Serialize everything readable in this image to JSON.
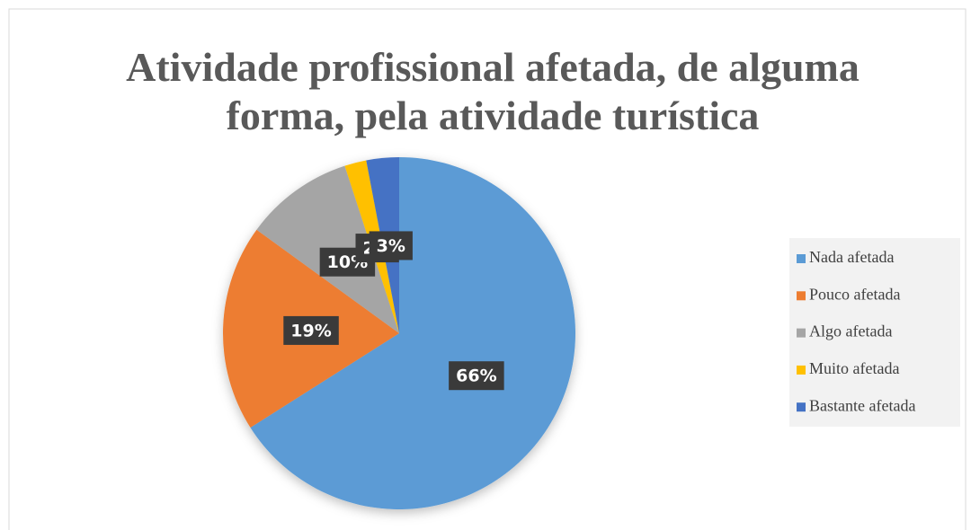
{
  "chart_data": {
    "type": "pie",
    "title": [
      "Atividade profissional afetada, de alguma",
      "forma, pela atividade turística"
    ],
    "categories": [
      "Nada afetada",
      "Pouco afetada",
      "Algo afetada",
      "Muito afetada",
      "Bastante afetada"
    ],
    "values": [
      66,
      19,
      10,
      2,
      3
    ],
    "value_labels": [
      "66%",
      "19%",
      "10%",
      "2%",
      "3%"
    ],
    "colors": [
      "#5b9bd5",
      "#ed7d31",
      "#a5a5a5",
      "#ffc000",
      "#4472c4"
    ],
    "legend": "right"
  }
}
